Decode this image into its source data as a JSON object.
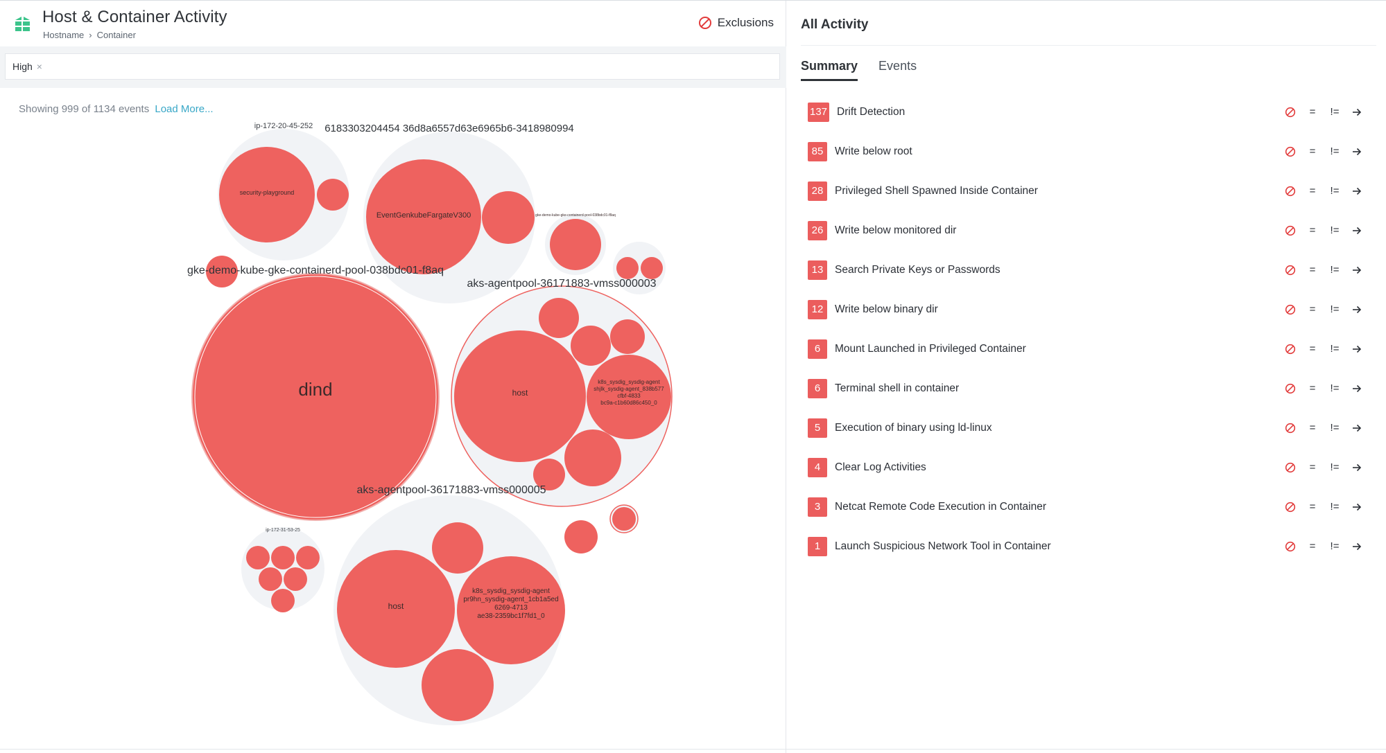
{
  "header": {
    "title": "Host & Container Activity",
    "breadcrumb": [
      "Hostname",
      "Container"
    ],
    "exclusions_label": "Exclusions"
  },
  "filter": {
    "chip_label": "High",
    "remove_icon": "close-icon"
  },
  "showing": {
    "text": "Showing 999 of 1134 events",
    "load_more": "Load More..."
  },
  "colors": {
    "bubble_red": "#ee625f",
    "bubble_group": "#f1f3f6",
    "badge_red": "#eb5d5d",
    "link_blue": "#38a7c7",
    "logo_green": "#3cc48b"
  },
  "bubble_labels": {
    "ip_172_20_45_252": "ip-172-20-45-252",
    "cluster_hash": "6183303204454 36d8a6557d63e6965b6-3418980994",
    "security_playground": "security-playground",
    "event_genkube": "EventGenkubeFargateV300",
    "gke_demo_small": "gke-demo-kube-gke-containerd-pool-038bdc01-f8aq",
    "gke_demo": "gke-demo-kube-gke-containerd-pool-038bdc01-f8aq",
    "aks_03": "aks-agentpool-36171883-vmss000003",
    "dind": "dind",
    "host_a": "host",
    "sysdig_a_1": "k8s_sysdig_sysdig-agent",
    "sysdig_a_2": "shjlk_sysdig-agent_838b577",
    "sysdig_a_3": "cfbf-4833",
    "sysdig_a_4": "bc9a-c1b60d86c450_0",
    "aks_05": "aks-agentpool-36171883-vmss000005",
    "ip_172_31_53_25": "ip-172-31-53-25",
    "host_b": "host",
    "sysdig_b_1": "k8s_sysdig_sysdig-agent",
    "sysdig_b_2": "pr9hn_sysdig-agent_1cb1a5ed",
    "sysdig_b_3": "6269-4713",
    "sysdig_b_4": "ae38-2359bc1f7fd1_0"
  },
  "right": {
    "title": "All Activity",
    "tabs": [
      {
        "label": "Summary",
        "active": true
      },
      {
        "label": "Events",
        "active": false
      }
    ],
    "action_labels": {
      "equals": "=",
      "not_equals": "!="
    },
    "items": [
      {
        "count": "137",
        "label": "Drift Detection"
      },
      {
        "count": "85",
        "label": "Write below root"
      },
      {
        "count": "28",
        "label": "Privileged Shell Spawned Inside Container"
      },
      {
        "count": "26",
        "label": "Write below monitored dir"
      },
      {
        "count": "13",
        "label": "Search Private Keys or Passwords"
      },
      {
        "count": "12",
        "label": "Write below binary dir"
      },
      {
        "count": "6",
        "label": "Mount Launched in Privileged Container"
      },
      {
        "count": "6",
        "label": "Terminal shell in container"
      },
      {
        "count": "5",
        "label": "Execution of binary using ld-linux"
      },
      {
        "count": "4",
        "label": "Clear Log Activities"
      },
      {
        "count": "3",
        "label": "Netcat Remote Code Execution in Container"
      },
      {
        "count": "1",
        "label": "Launch Suspicious Network Tool in Container"
      }
    ]
  }
}
